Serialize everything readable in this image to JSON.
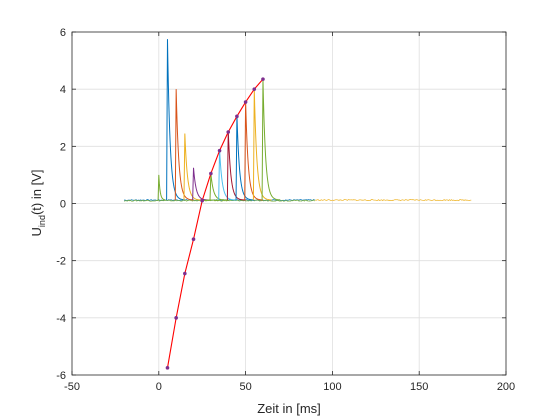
{
  "chart_data": {
    "type": "line",
    "title": "",
    "xlabel": "Zeit in [ms]",
    "ylabel_main": "U",
    "ylabel_sub": "ind",
    "ylabel_rest": "(t) in [V]",
    "xlim": [
      -50,
      200
    ],
    "ylim": [
      -6,
      6
    ],
    "xticks": [
      -50,
      0,
      50,
      100,
      150,
      200
    ],
    "yticks": [
      -6,
      -4,
      -2,
      0,
      2,
      4,
      6
    ],
    "grid": true,
    "legend": "none",
    "pulse_series": [
      {
        "color": "#0072BD",
        "start": 5,
        "peak": 5.75,
        "baseline": 0.12
      },
      {
        "color": "#D95319",
        "start": 10,
        "peak": 4.0,
        "baseline": 0.12
      },
      {
        "color": "#EDB120",
        "start": 15,
        "peak": 2.45,
        "baseline": 0.12
      },
      {
        "color": "#7E2F8E",
        "start": 20,
        "peak": 1.25,
        "baseline": 0.12
      },
      {
        "color": "#77AC30",
        "start": 25,
        "peak": 0.1,
        "baseline": 0.12
      },
      {
        "color": "#77AC30",
        "start": 30,
        "peak": 1.05,
        "baseline": 0.12
      },
      {
        "color": "#4DBEEE",
        "start": 35,
        "peak": 1.9,
        "baseline": 0.12
      },
      {
        "color": "#A2142F",
        "start": 40,
        "peak": 2.55,
        "baseline": 0.12
      },
      {
        "color": "#0072BD",
        "start": 45,
        "peak": 3.1,
        "baseline": 0.12
      },
      {
        "color": "#D95319",
        "start": 50,
        "peak": 3.6,
        "baseline": 0.12
      },
      {
        "color": "#EDB120",
        "start": 55,
        "peak": 4.0,
        "baseline": 0.12
      },
      {
        "color": "#77AC30",
        "start": 60,
        "peak": 4.35,
        "baseline": 0.12
      }
    ],
    "pre_blip": {
      "x": 0,
      "peak": 1.0,
      "baseline": 0.12
    },
    "noise_traces": [
      {
        "color": "#0072BD",
        "x_range": [
          -20,
          90
        ],
        "y": 0.12
      },
      {
        "color": "#77AC30",
        "x_range": [
          -20,
          90
        ],
        "y": 0.1
      },
      {
        "color": "#EDB120",
        "x_range": [
          90,
          180
        ],
        "y": 0.12
      }
    ],
    "fit_curve": {
      "color": "#FF0000",
      "marker_color": "#7E2F8E",
      "x": [
        5,
        10,
        15,
        20,
        25,
        30,
        35,
        40,
        45,
        50,
        55,
        60
      ],
      "y": [
        -5.75,
        -4.0,
        -2.45,
        -1.25,
        0.1,
        1.05,
        1.85,
        2.5,
        3.05,
        3.55,
        4.0,
        4.35
      ]
    }
  }
}
